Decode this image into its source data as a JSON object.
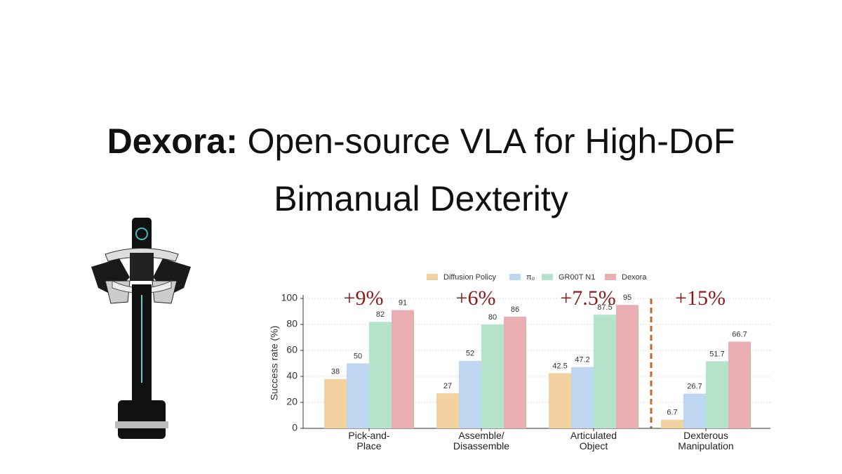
{
  "title_bold": "Dexora:",
  "title": "Open-source VLA for High-DoF Bimanual Dexterity",
  "chart_data": {
    "type": "bar",
    "y_label": "Success rate (%)",
    "categories": [
      "Pick-and-\nPlace",
      "Assemble/\nDisassemble",
      "Articulated\nObject",
      "Dexterous\nManipulation"
    ],
    "series": [
      {
        "name": "Diffusion Policy",
        "color": "#f3d2a2",
        "values": [
          38,
          27,
          42.5,
          6.7
        ]
      },
      {
        "name": "π₀",
        "color": "#bfd6f0",
        "values": [
          50,
          52,
          47.2,
          26.7
        ]
      },
      {
        "name": "GR00T N1",
        "color": "#b6e3cb",
        "values": [
          82,
          80,
          87.5,
          51.7
        ]
      },
      {
        "name": "Dexora",
        "color": "#e8aeb2",
        "values": [
          91,
          86,
          95,
          66.7
        ]
      }
    ],
    "annotations": [
      "+9%",
      "+6%",
      "+7.5%",
      "+15%"
    ],
    "ylim": [
      0,
      100
    ],
    "yticks": [
      0,
      20,
      40,
      60,
      80,
      100
    ],
    "grid": true
  }
}
